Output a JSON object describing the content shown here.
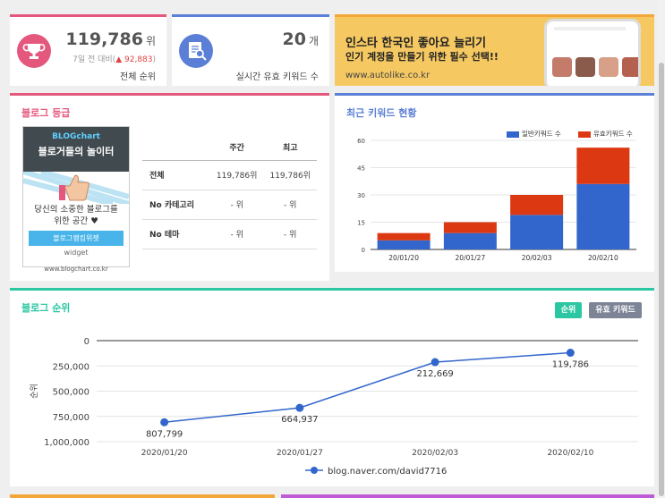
{
  "stats": [
    {
      "value": "119,786",
      "unit": "위",
      "sub_prefix": "7일 전 대비(",
      "delta": "▲ 92,883",
      "sub_suffix": ")",
      "label": "전체 순위",
      "icon": "trophy-icon",
      "color": "#e5587e"
    },
    {
      "value": "20",
      "unit": "개",
      "label": "실시간 유효 키워드 수",
      "icon": "search-document-icon",
      "color": "#5b7fd6"
    }
  ],
  "ad": {
    "line1": "인스타 한국인 좋아요 늘리기",
    "line2": "인기 계정을 만들기 위한 필수 선택!!",
    "url": "www.autolike.co.kr"
  },
  "grade": {
    "title": "블로그 등급",
    "widget": {
      "brand": "BLOGchart",
      "title": "블로거들의 놀이터",
      "text1": "당신의 소중한 블로그를",
      "text2": "위한 공간 ♥",
      "button": "블로그랭킹위젯",
      "small": "widget",
      "url": "www.blogchart.co.kr"
    },
    "headers": [
      "",
      "주간",
      "최고"
    ],
    "rows": [
      [
        "전체",
        "119,786위",
        "119,786위"
      ],
      [
        "No 카테고리",
        "- 위",
        "- 위"
      ],
      [
        "No 테마",
        "- 위",
        "- 위"
      ]
    ]
  },
  "keyword": {
    "title": "최근 키워드 현황"
  },
  "rank": {
    "title": "블로그 순위",
    "btn_rank": "순위",
    "btn_keyword": "유효 키워드"
  },
  "chart_data": [
    {
      "type": "bar",
      "stacked": true,
      "categories": [
        "20/01/20",
        "20/01/27",
        "20/02/03",
        "20/02/10"
      ],
      "series": [
        {
          "name": "일반키워드 수",
          "values": [
            5,
            9,
            19,
            36
          ],
          "color": "#3366cc"
        },
        {
          "name": "유효키워드 수",
          "values": [
            4,
            6,
            11,
            20
          ],
          "color": "#dc3912"
        }
      ],
      "yticks": [
        "0",
        "15",
        "30",
        "45",
        "60"
      ],
      "ylim": [
        0,
        60
      ],
      "legend": "top-right"
    },
    {
      "type": "line",
      "categories": [
        "2020/01/20",
        "2020/01/27",
        "2020/02/03",
        "2020/02/10"
      ],
      "series": [
        {
          "name": "blog.naver.com/david7716",
          "values": [
            807799,
            664937,
            212669,
            119786
          ],
          "labels": [
            "807,799",
            "664,937",
            "212,669",
            "119,786"
          ],
          "color": "#3366cc"
        }
      ],
      "yticks": [
        "0",
        "250,000",
        "500,000",
        "750,000",
        "1,000,000"
      ],
      "ylabel": "순위",
      "ylim": [
        0,
        1000000
      ],
      "y_reversed": true,
      "legend": "bottom"
    }
  ]
}
